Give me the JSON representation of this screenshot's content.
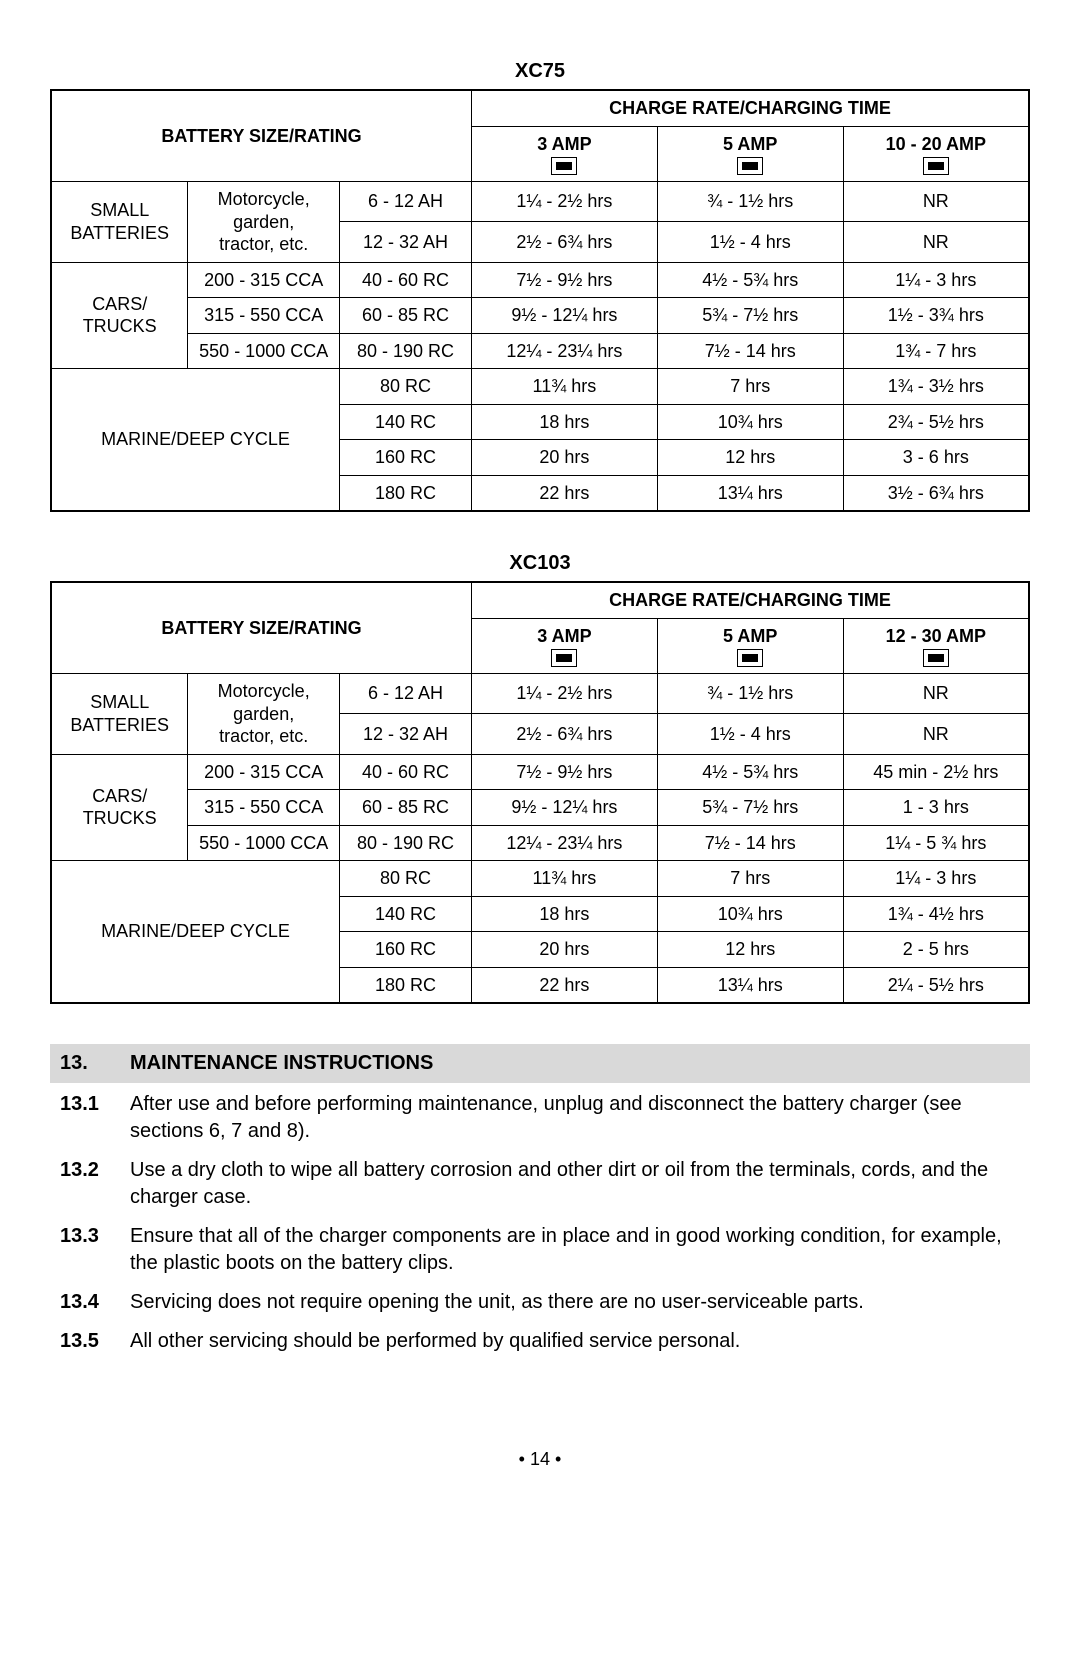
{
  "tables": [
    {
      "title": "XC75",
      "header_bsr": "BATTERY SIZE/RATING",
      "header_rate": "CHARGE RATE/CHARGING TIME",
      "amp_cols": [
        "3 AMP",
        "5 AMP",
        "10 - 20 AMP"
      ],
      "groups": [
        {
          "cat": "SMALL\nBATTERIES",
          "sub": "Motorcycle,\ngarden,\ntractor, etc.",
          "sub_rowspan": 2,
          "rows": [
            {
              "rc": "6 - 12 AH",
              "a1": "1¼ - 2½ hrs",
              "a2": "¾ - 1½ hrs",
              "a3": "NR"
            },
            {
              "rc": "12 - 32 AH",
              "a1": "2½ - 6¾ hrs",
              "a2": "1½ - 4 hrs",
              "a3": "NR"
            }
          ]
        },
        {
          "cat": "CARS/\nTRUCKS",
          "rows": [
            {
              "sub": "200 - 315 CCA",
              "rc": "40 - 60 RC",
              "a1": "7½ - 9½ hrs",
              "a2": "4½ - 5¾ hrs",
              "a3": "1¼ - 3 hrs"
            },
            {
              "sub": "315 - 550 CCA",
              "rc": "60 - 85 RC",
              "a1": "9½ - 12¼ hrs",
              "a2": "5¾ - 7½ hrs",
              "a3": "1½ - 3¾ hrs"
            },
            {
              "sub": "550 - 1000 CCA",
              "rc": "80 - 190 RC",
              "a1": "12¼ - 23¼ hrs",
              "a2": "7½ - 14 hrs",
              "a3": "1¾ - 7 hrs"
            }
          ]
        },
        {
          "cat": "MARINE/DEEP CYCLE",
          "cat_span3": true,
          "rows": [
            {
              "rc": "80 RC",
              "a1": "11¾ hrs",
              "a2": "7 hrs",
              "a3": "1¾ - 3½ hrs"
            },
            {
              "rc": "140 RC",
              "a1": "18 hrs",
              "a2": "10¾ hrs",
              "a3": "2¾ - 5½ hrs"
            },
            {
              "rc": "160 RC",
              "a1": "20 hrs",
              "a2": "12 hrs",
              "a3": "3 - 6 hrs"
            },
            {
              "rc": "180 RC",
              "a1": "22 hrs",
              "a2": "13¼ hrs",
              "a3": "3½ - 6¾ hrs"
            }
          ]
        }
      ]
    },
    {
      "title": "XC103",
      "header_bsr": "BATTERY SIZE/RATING",
      "header_rate": "CHARGE RATE/CHARGING TIME",
      "amp_cols": [
        "3 AMP",
        "5 AMP",
        "12 - 30 AMP"
      ],
      "groups": [
        {
          "cat": "SMALL\nBATTERIES",
          "sub": "Motorcycle,\ngarden,\ntractor, etc.",
          "sub_rowspan": 2,
          "rows": [
            {
              "rc": "6 - 12 AH",
              "a1": "1¼ - 2½ hrs",
              "a2": "¾ - 1½ hrs",
              "a3": "NR"
            },
            {
              "rc": "12 - 32 AH",
              "a1": "2½ - 6¾ hrs",
              "a2": "1½ - 4 hrs",
              "a3": "NR"
            }
          ]
        },
        {
          "cat": "CARS/\nTRUCKS",
          "rows": [
            {
              "sub": "200 - 315 CCA",
              "rc": "40 - 60 RC",
              "a1": "7½ - 9½ hrs",
              "a2": "4½ - 5¾ hrs",
              "a3": "45 min - 2½ hrs"
            },
            {
              "sub": "315 - 550 CCA",
              "rc": "60 - 85 RC",
              "a1": "9½ - 12¼ hrs",
              "a2": "5¾ - 7½ hrs",
              "a3": "1 - 3 hrs"
            },
            {
              "sub": "550 - 1000 CCA",
              "rc": "80 - 190 RC",
              "a1": "12¼ - 23¼ hrs",
              "a2": "7½ - 14 hrs",
              "a3": "1¼ - 5 ¾ hrs"
            }
          ]
        },
        {
          "cat": "MARINE/DEEP CYCLE",
          "cat_span3": true,
          "rows": [
            {
              "rc": "80 RC",
              "a1": "11¾ hrs",
              "a2": "7 hrs",
              "a3": "1¼ - 3 hrs"
            },
            {
              "rc": "140 RC",
              "a1": "18 hrs",
              "a2": "10¾ hrs",
              "a3": "1¾ - 4½ hrs"
            },
            {
              "rc": "160 RC",
              "a1": "20 hrs",
              "a2": "12 hrs",
              "a3": "2 - 5 hrs"
            },
            {
              "rc": "180 RC",
              "a1": "22 hrs",
              "a2": "13¼ hrs",
              "a3": "2¼ - 5½ hrs"
            }
          ]
        }
      ]
    }
  ],
  "section": {
    "num": "13.",
    "title": "MAINTENANCE INSTRUCTIONS",
    "items": [
      {
        "num": "13.1",
        "text": "After use and before performing maintenance, unplug and disconnect the battery charger (see sections 6, 7 and 8)."
      },
      {
        "num": "13.2",
        "text": "Use a dry cloth to wipe all battery corrosion and other dirt or oil from the terminals, cords, and the charger case."
      },
      {
        "num": "13.3",
        "text": "Ensure that all of the charger components are in place and in good working condition, for example, the plastic boots on the battery clips."
      },
      {
        "num": "13.4",
        "text": "Servicing does not require opening the unit, as there are no user-serviceable parts."
      },
      {
        "num": "13.5",
        "text": "All other servicing should be performed by qualified service personal."
      }
    ]
  },
  "page_number": "• 14 •"
}
